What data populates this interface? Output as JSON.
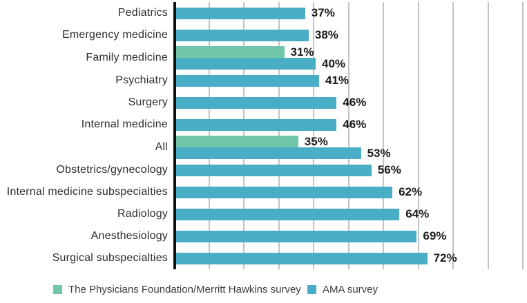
{
  "chart_data": {
    "type": "bar",
    "orientation": "horizontal",
    "title": "",
    "categories": [
      "Pediatrics",
      "Emergency medicine",
      "Family medicine",
      "Psychiatry",
      "Surgery",
      "Internal medicine",
      "All",
      "Obstetrics/gynecology",
      "Internal medicine subspecialties",
      "Radiology",
      "Anesthesiology",
      "Surgical subspecialties"
    ],
    "series": [
      {
        "name": "The Physicians Foundation/Merritt Hawkins survey",
        "key": "merritt-hawkins",
        "color": "#71C6AA",
        "values": [
          null,
          null,
          31,
          null,
          null,
          null,
          35,
          null,
          null,
          null,
          null,
          null
        ]
      },
      {
        "name": "AMA survey",
        "key": "ama",
        "color": "#49AEC5",
        "values": [
          37,
          38,
          40,
          41,
          46,
          46,
          53,
          56,
          62,
          64,
          69,
          72
        ]
      }
    ],
    "value_suffix": "%",
    "xlabel": "",
    "ylabel": "",
    "xlim": [
      0,
      100
    ],
    "grid_step": 10,
    "grid_on": true,
    "grid_color": "#C3C3C3",
    "axis_color": "#101010",
    "legend_position": "bottom"
  }
}
